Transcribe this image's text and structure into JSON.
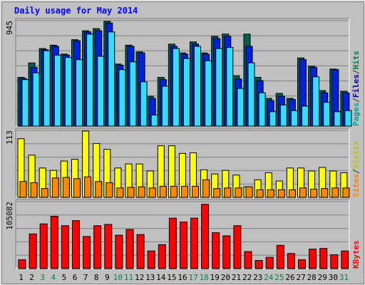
{
  "chart_data": {
    "type": "bar",
    "title": "Daily usage for May 2014",
    "categories": [
      "1",
      "2",
      "3",
      "4",
      "5",
      "6",
      "7",
      "8",
      "9",
      "10",
      "11",
      "12",
      "13",
      "14",
      "15",
      "16",
      "17",
      "18",
      "19",
      "20",
      "21",
      "22",
      "23",
      "24",
      "25",
      "26",
      "27",
      "28",
      "29",
      "30",
      "31"
    ],
    "weekend_days": [
      "3",
      "4",
      "10",
      "11",
      "17",
      "18",
      "24",
      "25",
      "31"
    ],
    "panels": [
      {
        "id": "pages-files-hits",
        "max_label": "945",
        "ylim": [
          0,
          945
        ],
        "grid": true,
        "legend": [
          {
            "label": "Pages",
            "color": "#00a0a0"
          },
          {
            "label": "/",
            "color": "#303030"
          },
          {
            "label": "Files",
            "color": "#0000a0"
          },
          {
            "label": "/",
            "color": "#303030"
          },
          {
            "label": "Hits",
            "color": "#008040"
          }
        ],
        "series": [
          {
            "name": "Hits",
            "color": "#006050",
            "values": [
              440,
              570,
              700,
              730,
              650,
              780,
              860,
              880,
              945,
              560,
              730,
              670,
              270,
              440,
              740,
              660,
              760,
              660,
              810,
              830,
              455,
              830,
              440,
              250,
              295,
              250,
              615,
              540,
              320,
              515,
              315
            ]
          },
          {
            "name": "Files",
            "color": "#0022dd",
            "values": [
              430,
              530,
              690,
              720,
              640,
              770,
              850,
              860,
              930,
              550,
              720,
              660,
              250,
              420,
              720,
              650,
              740,
              650,
              790,
              810,
              425,
              720,
              410,
              230,
              270,
              240,
              600,
              530,
              300,
              510,
              300
            ]
          },
          {
            "name": "Pages",
            "color": "#33ddff",
            "values": [
              420,
              480,
              680,
              640,
              620,
              600,
              830,
              630,
              850,
              510,
              580,
              400,
              100,
              360,
              700,
              610,
              720,
              590,
              700,
              710,
              340,
              570,
              300,
              130,
              190,
              140,
              180,
              445,
              215,
              130,
              140
            ]
          }
        ]
      },
      {
        "id": "sites-visits",
        "max_label": "113",
        "ylim": [
          0,
          113
        ],
        "grid": true,
        "legend": [
          {
            "label": "Sites",
            "color": "#ff8000"
          },
          {
            "label": "/",
            "color": "#303030"
          },
          {
            "label": "Visits",
            "color": "#c0c000"
          }
        ],
        "series": [
          {
            "name": "Visits",
            "color": "#ffff00",
            "values": [
              100,
              72,
              50,
              46,
              62,
              65,
              113,
              92,
              82,
              50,
              57,
              57,
              45,
              88,
              88,
              75,
              76,
              47,
              40,
              46,
              38,
              18,
              30,
              42,
              28,
              50,
              50,
              45,
              51,
              45,
              42
            ]
          },
          {
            "name": "Sites",
            "color": "#ff8800",
            "values": [
              27,
              25,
              15,
              33,
              34,
              32,
              35,
              27,
              25,
              16,
              17,
              18,
              16,
              19,
              19,
              19,
              19,
              30,
              15,
              16,
              16,
              18,
              13,
              13,
              13,
              13,
              16,
              14,
              15,
              16,
              16
            ]
          }
        ]
      },
      {
        "id": "kbytes",
        "max_label": "105082",
        "ylim": [
          0,
          105082
        ],
        "grid": true,
        "legend": [
          {
            "label": "KBytes",
            "color": "#ff0000"
          }
        ],
        "series": [
          {
            "name": "KBytes",
            "color": "#ff0000",
            "values": [
              14000,
              55000,
              71000,
              83000,
              68000,
              76000,
              51000,
              68000,
              70000,
              53000,
              62000,
              54000,
              28000,
              38000,
              80000,
              74000,
              80000,
              102000,
              57000,
              52000,
              68000,
              27000,
              13000,
              18000,
              37000,
              24000,
              14000,
              31000,
              32000,
              22000,
              28000
            ]
          }
        ]
      }
    ]
  }
}
